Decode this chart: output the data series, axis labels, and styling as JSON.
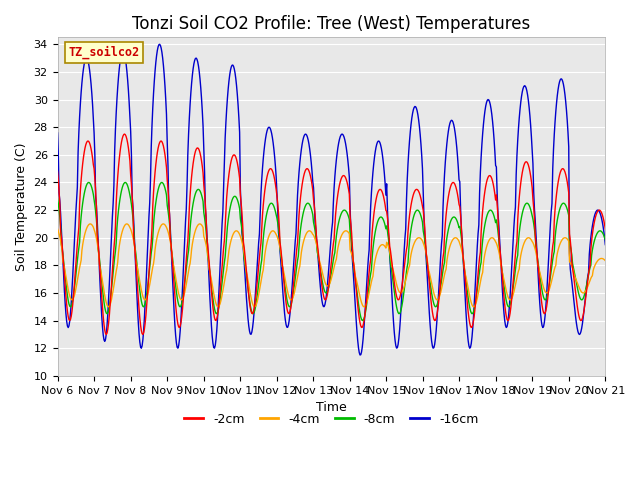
{
  "title": "Tonzi Soil CO2 Profile: Tree (West) Temperatures",
  "ylabel": "Soil Temperature (C)",
  "xlabel": "Time",
  "label_box_text": "TZ_soilco2",
  "ylim": [
    10,
    34.5
  ],
  "yticks": [
    10,
    12,
    14,
    16,
    18,
    20,
    22,
    24,
    26,
    28,
    30,
    32,
    34
  ],
  "start_day": 6,
  "n_days": 15,
  "series": [
    {
      "label": "-2cm",
      "color": "#ff0000"
    },
    {
      "label": "-4cm",
      "color": "#ffa500"
    },
    {
      "label": "-8cm",
      "color": "#00bb00"
    },
    {
      "label": "-16cm",
      "color": "#0000cc"
    }
  ],
  "background_color": "#e8e8e8",
  "title_fontsize": 12,
  "axis_label_fontsize": 9,
  "tick_fontsize": 8,
  "legend_fontsize": 9
}
